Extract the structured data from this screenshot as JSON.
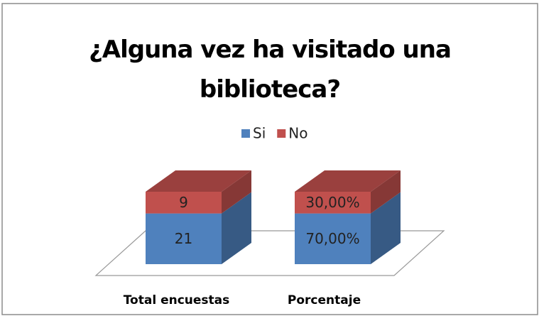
{
  "chart_data": {
    "type": "bar",
    "stacking": "percent",
    "three_d": true,
    "title": "¿Alguna vez ha visitado una biblioteca?",
    "categories": [
      "Total encuestas",
      "Porcentaje"
    ],
    "series": [
      {
        "name": "Si",
        "color": "#4f81bd",
        "values": [
          21,
          70
        ],
        "value_labels": [
          "21",
          "70,00%"
        ]
      },
      {
        "name": "No",
        "color": "#c0504d",
        "values": [
          9,
          30
        ],
        "value_labels": [
          "9",
          "30,00%"
        ]
      }
    ],
    "legend": "top"
  }
}
